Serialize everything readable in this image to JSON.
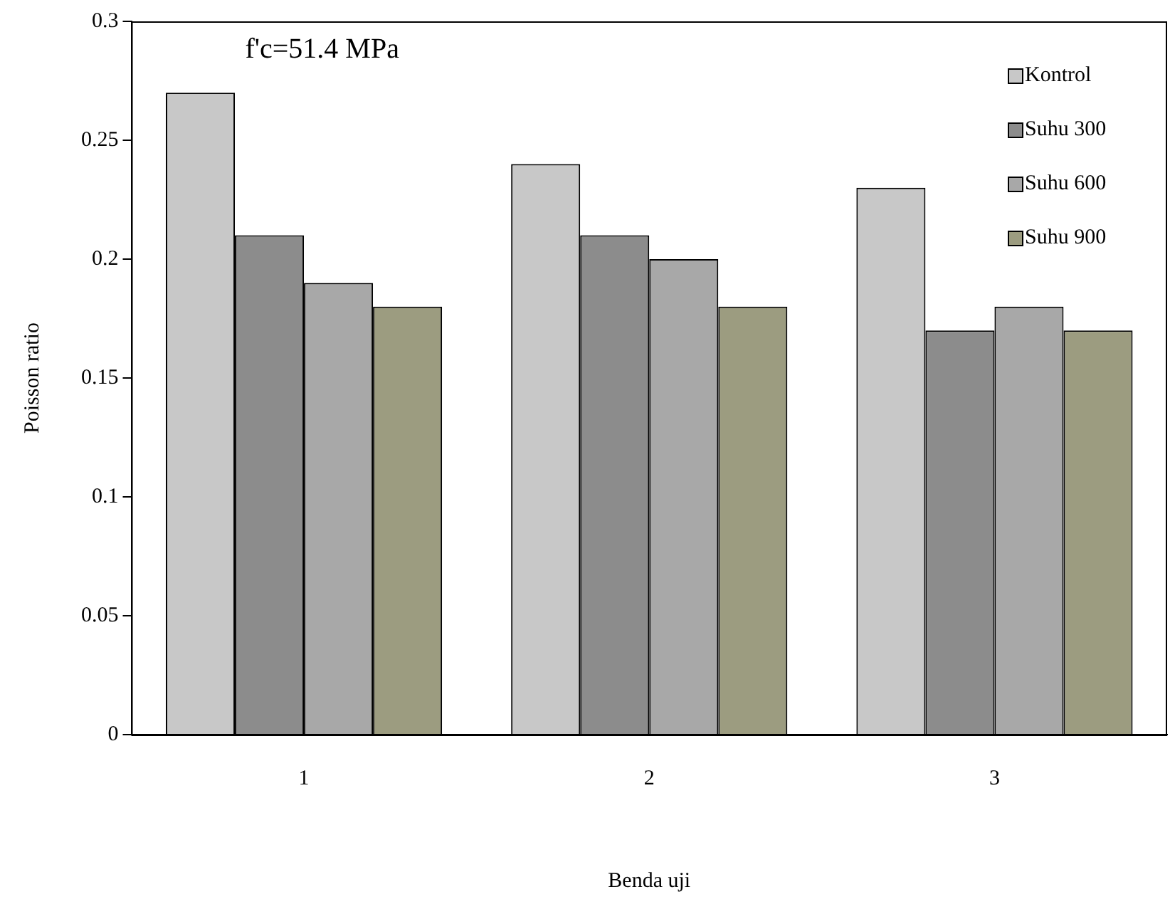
{
  "chart_data": {
    "type": "bar",
    "xlabel": "Benda uji",
    "ylabel": "Poisson ratio",
    "categories": [
      "1",
      "2",
      "3"
    ],
    "series": [
      {
        "name": "Kontrol",
        "color": "#c8c8c8",
        "values": [
          0.27,
          0.24,
          0.23
        ]
      },
      {
        "name": "Suhu 300",
        "color": "#8c8c8c",
        "values": [
          0.21,
          0.21,
          0.17
        ]
      },
      {
        "name": "Suhu 600",
        "color": "#a8a8a8",
        "values": [
          0.19,
          0.2,
          0.18
        ]
      },
      {
        "name": "Suhu 900",
        "color": "#9c9c80",
        "values": [
          0.18,
          0.18,
          0.17
        ]
      }
    ],
    "ylim": [
      0,
      0.3
    ],
    "yticks": [
      0,
      0.05,
      0.1,
      0.15,
      0.2,
      0.25,
      0.3
    ],
    "grid": false,
    "legend": "top right",
    "annotations": [
      "f'c=51.4 MPa"
    ]
  }
}
